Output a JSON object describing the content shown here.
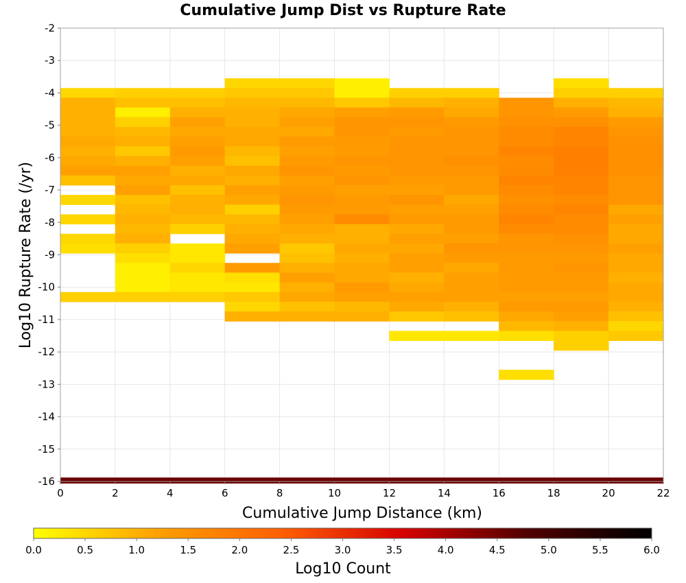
{
  "chart_data": {
    "type": "heatmap",
    "title": "Cumulative Jump Dist vs Rupture Rate",
    "xlabel": "Cumulative Jump Distance (km)",
    "ylabel": "Log10 Rupture Rate (/yr)",
    "xlim": [
      0,
      22
    ],
    "ylim": [
      -16,
      -2
    ],
    "x_ticks": [
      "0",
      "2",
      "4",
      "6",
      "8",
      "10",
      "12",
      "14",
      "16",
      "18",
      "20",
      "22"
    ],
    "y_ticks": [
      "-2",
      "-3",
      "-4",
      "-5",
      "-6",
      "-7",
      "-8",
      "-9",
      "-10",
      "-11",
      "-12",
      "-13",
      "-14",
      "-15",
      "-16"
    ],
    "x_bin_width": 2,
    "y_bin_height": 0.3,
    "grid": true,
    "colorbar": {
      "label": "Log10 Count",
      "range": [
        0,
        6
      ],
      "ticks": [
        "0.0",
        "0.5",
        "1.0",
        "1.5",
        "2.0",
        "2.5",
        "3.0",
        "3.5",
        "4.0",
        "4.5",
        "5.0",
        "5.5",
        "6.0"
      ],
      "colors": [
        "#ffff00",
        "#ffa000",
        "#ff6000",
        "#d40000",
        "#500000",
        "#000000"
      ]
    },
    "bins": [
      {
        "x": 0,
        "cells": [
          [
            -4.0,
            0.5
          ],
          [
            -4.3,
            1.0
          ],
          [
            -4.6,
            1.0
          ],
          [
            -4.9,
            1.0
          ],
          [
            -5.2,
            1.0
          ],
          [
            -5.5,
            1.1
          ],
          [
            -5.8,
            1.0
          ],
          [
            -6.1,
            1.1
          ],
          [
            -6.4,
            1.2
          ],
          [
            -6.7,
            0.8
          ],
          [
            -7.3,
            0.5
          ],
          [
            -7.9,
            0.5
          ],
          [
            -8.5,
            0.5
          ],
          [
            -8.8,
            0.4
          ],
          [
            -10.3,
            0.6
          ]
        ]
      },
      {
        "x": 2,
        "cells": [
          [
            -4.0,
            0.6
          ],
          [
            -4.3,
            0.8
          ],
          [
            -4.6,
            0.2
          ],
          [
            -4.9,
            0.6
          ],
          [
            -5.2,
            0.9
          ],
          [
            -5.5,
            1.0
          ],
          [
            -5.8,
            0.7
          ],
          [
            -6.1,
            1.0
          ],
          [
            -6.4,
            1.2
          ],
          [
            -6.7,
            1.1
          ],
          [
            -7.0,
            1.2
          ],
          [
            -7.3,
            0.8
          ],
          [
            -7.6,
            0.9
          ],
          [
            -7.9,
            1.0
          ],
          [
            -8.2,
            0.9
          ],
          [
            -8.5,
            1.0
          ],
          [
            -8.8,
            0.6
          ],
          [
            -9.1,
            0.4
          ],
          [
            -9.4,
            0.2
          ],
          [
            -9.7,
            0.2
          ],
          [
            -10.0,
            0.2
          ],
          [
            -10.3,
            0.6
          ]
        ]
      },
      {
        "x": 4,
        "cells": [
          [
            -4.0,
            0.6
          ],
          [
            -4.3,
            0.8
          ],
          [
            -4.6,
            1.0
          ],
          [
            -4.9,
            1.2
          ],
          [
            -5.2,
            1.1
          ],
          [
            -5.5,
            1.2
          ],
          [
            -5.8,
            1.3
          ],
          [
            -6.1,
            1.2
          ],
          [
            -6.4,
            1.0
          ],
          [
            -6.7,
            1.1
          ],
          [
            -7.0,
            0.8
          ],
          [
            -7.3,
            1.0
          ],
          [
            -7.6,
            1.0
          ],
          [
            -7.9,
            0.9
          ],
          [
            -8.2,
            0.6
          ],
          [
            -8.8,
            0.3
          ],
          [
            -9.1,
            0.3
          ],
          [
            -9.4,
            0.5
          ],
          [
            -9.7,
            0.3
          ],
          [
            -10.0,
            0.3
          ],
          [
            -10.3,
            0.6
          ]
        ]
      },
      {
        "x": 6,
        "cells": [
          [
            -3.7,
            0.5
          ],
          [
            -4.0,
            0.7
          ],
          [
            -4.3,
            0.9
          ],
          [
            -4.6,
            1.0
          ],
          [
            -4.9,
            1.0
          ],
          [
            -5.2,
            1.1
          ],
          [
            -5.5,
            1.1
          ],
          [
            -5.8,
            0.9
          ],
          [
            -6.1,
            0.8
          ],
          [
            -6.4,
            1.1
          ],
          [
            -6.7,
            1.0
          ],
          [
            -7.0,
            1.2
          ],
          [
            -7.3,
            1.1
          ],
          [
            -7.6,
            0.6
          ],
          [
            -7.9,
            0.9
          ],
          [
            -8.2,
            1.0
          ],
          [
            -8.5,
            1.1
          ],
          [
            -8.8,
            1.2
          ],
          [
            -9.4,
            1.3
          ],
          [
            -9.7,
            0.4
          ],
          [
            -10.0,
            0.3
          ],
          [
            -10.3,
            0.7
          ],
          [
            -10.6,
            0.5
          ],
          [
            -10.9,
            1.0
          ]
        ]
      },
      {
        "x": 8,
        "cells": [
          [
            -3.7,
            0.5
          ],
          [
            -4.0,
            0.7
          ],
          [
            -4.3,
            0.9
          ],
          [
            -4.6,
            1.1
          ],
          [
            -4.9,
            1.2
          ],
          [
            -5.2,
            1.1
          ],
          [
            -5.5,
            1.3
          ],
          [
            -5.8,
            1.2
          ],
          [
            -6.1,
            1.3
          ],
          [
            -6.4,
            1.4
          ],
          [
            -6.7,
            1.2
          ],
          [
            -7.0,
            1.3
          ],
          [
            -7.3,
            1.4
          ],
          [
            -7.6,
            1.3
          ],
          [
            -7.9,
            1.2
          ],
          [
            -8.2,
            1.1
          ],
          [
            -8.5,
            1.0
          ],
          [
            -8.8,
            0.7
          ],
          [
            -9.1,
            0.8
          ],
          [
            -9.4,
            1.0
          ],
          [
            -9.7,
            1.2
          ],
          [
            -10.0,
            1.0
          ],
          [
            -10.3,
            1.1
          ],
          [
            -10.6,
            0.8
          ],
          [
            -10.9,
            1.0
          ]
        ]
      },
      {
        "x": 10,
        "cells": [
          [
            -3.7,
            0.2
          ],
          [
            -4.0,
            0.2
          ],
          [
            -4.3,
            0.7
          ],
          [
            -4.6,
            1.2
          ],
          [
            -4.9,
            1.4
          ],
          [
            -5.2,
            1.4
          ],
          [
            -5.5,
            1.3
          ],
          [
            -5.8,
            1.3
          ],
          [
            -6.1,
            1.4
          ],
          [
            -6.4,
            1.3
          ],
          [
            -6.7,
            1.4
          ],
          [
            -7.0,
            1.2
          ],
          [
            -7.3,
            1.3
          ],
          [
            -7.6,
            1.3
          ],
          [
            -7.9,
            1.6
          ],
          [
            -8.2,
            1.0
          ],
          [
            -8.5,
            1.0
          ],
          [
            -8.8,
            1.1
          ],
          [
            -9.1,
            1.0
          ],
          [
            -9.4,
            1.1
          ],
          [
            -9.7,
            1.1
          ],
          [
            -10.0,
            1.3
          ],
          [
            -10.3,
            1.2
          ],
          [
            -10.6,
            0.9
          ],
          [
            -10.9,
            1.0
          ]
        ]
      },
      {
        "x": 12,
        "cells": [
          [
            -4.0,
            0.6
          ],
          [
            -4.3,
            0.9
          ],
          [
            -4.6,
            1.3
          ],
          [
            -4.9,
            1.4
          ],
          [
            -5.2,
            1.3
          ],
          [
            -5.5,
            1.4
          ],
          [
            -5.8,
            1.4
          ],
          [
            -6.1,
            1.4
          ],
          [
            -6.4,
            1.4
          ],
          [
            -6.7,
            1.3
          ],
          [
            -7.0,
            1.2
          ],
          [
            -7.3,
            1.4
          ],
          [
            -7.6,
            1.2
          ],
          [
            -7.9,
            1.3
          ],
          [
            -8.2,
            1.1
          ],
          [
            -8.5,
            1.2
          ],
          [
            -8.8,
            1.1
          ],
          [
            -9.1,
            1.2
          ],
          [
            -9.4,
            1.2
          ],
          [
            -9.7,
            1.0
          ],
          [
            -10.0,
            1.1
          ],
          [
            -10.3,
            1.2
          ],
          [
            -10.6,
            1.1
          ],
          [
            -10.9,
            0.7
          ],
          [
            -11.5,
            0.3
          ]
        ]
      },
      {
        "x": 14,
        "cells": [
          [
            -4.0,
            0.6
          ],
          [
            -4.3,
            1.0
          ],
          [
            -4.6,
            1.1
          ],
          [
            -4.9,
            1.3
          ],
          [
            -5.2,
            1.4
          ],
          [
            -5.5,
            1.4
          ],
          [
            -5.8,
            1.4
          ],
          [
            -6.1,
            1.5
          ],
          [
            -6.4,
            1.4
          ],
          [
            -6.7,
            1.3
          ],
          [
            -7.0,
            1.3
          ],
          [
            -7.3,
            1.1
          ],
          [
            -7.6,
            1.2
          ],
          [
            -7.9,
            1.3
          ],
          [
            -8.2,
            1.3
          ],
          [
            -8.5,
            1.2
          ],
          [
            -8.8,
            1.4
          ],
          [
            -9.1,
            1.3
          ],
          [
            -9.4,
            1.1
          ],
          [
            -9.7,
            1.2
          ],
          [
            -10.0,
            1.2
          ],
          [
            -10.3,
            1.2
          ],
          [
            -10.6,
            1.0
          ],
          [
            -10.9,
            0.8
          ],
          [
            -11.5,
            0.3
          ]
        ]
      },
      {
        "x": 16,
        "cells": [
          [
            -4.3,
            1.4
          ],
          [
            -4.6,
            1.4
          ],
          [
            -4.9,
            1.5
          ],
          [
            -5.2,
            1.6
          ],
          [
            -5.5,
            1.6
          ],
          [
            -5.8,
            1.7
          ],
          [
            -6.1,
            1.6
          ],
          [
            -6.4,
            1.6
          ],
          [
            -6.7,
            1.7
          ],
          [
            -7.0,
            1.6
          ],
          [
            -7.3,
            1.5
          ],
          [
            -7.6,
            1.6
          ],
          [
            -7.9,
            1.7
          ],
          [
            -8.2,
            1.6
          ],
          [
            -8.5,
            1.4
          ],
          [
            -8.8,
            1.4
          ],
          [
            -9.1,
            1.3
          ],
          [
            -9.4,
            1.3
          ],
          [
            -9.7,
            1.3
          ],
          [
            -10.0,
            1.3
          ],
          [
            -10.3,
            1.2
          ],
          [
            -10.6,
            1.3
          ],
          [
            -10.9,
            1.1
          ],
          [
            -11.2,
            0.9
          ],
          [
            -11.5,
            0.4
          ],
          [
            -12.7,
            0.4
          ]
        ]
      },
      {
        "x": 18,
        "cells": [
          [
            -3.7,
            0.4
          ],
          [
            -4.0,
            0.6
          ],
          [
            -4.3,
            1.0
          ],
          [
            -4.6,
            1.3
          ],
          [
            -4.9,
            1.5
          ],
          [
            -5.2,
            1.7
          ],
          [
            -5.5,
            1.7
          ],
          [
            -5.8,
            1.8
          ],
          [
            -6.1,
            1.8
          ],
          [
            -6.4,
            1.8
          ],
          [
            -6.7,
            1.7
          ],
          [
            -7.0,
            1.7
          ],
          [
            -7.3,
            1.6
          ],
          [
            -7.6,
            1.7
          ],
          [
            -7.9,
            1.6
          ],
          [
            -8.2,
            1.6
          ],
          [
            -8.5,
            1.5
          ],
          [
            -8.8,
            1.4
          ],
          [
            -9.1,
            1.3
          ],
          [
            -9.4,
            1.4
          ],
          [
            -9.7,
            1.3
          ],
          [
            -10.0,
            1.3
          ],
          [
            -10.3,
            1.2
          ],
          [
            -10.6,
            1.3
          ],
          [
            -10.9,
            1.2
          ],
          [
            -11.2,
            1.0
          ],
          [
            -11.5,
            0.6
          ],
          [
            -11.8,
            0.6
          ]
        ]
      },
      {
        "x": 20,
        "cells": [
          [
            -4.0,
            0.6
          ],
          [
            -4.3,
            0.9
          ],
          [
            -4.6,
            1.0
          ],
          [
            -4.9,
            1.3
          ],
          [
            -5.2,
            1.4
          ],
          [
            -5.5,
            1.5
          ],
          [
            -5.8,
            1.5
          ],
          [
            -6.1,
            1.5
          ],
          [
            -6.4,
            1.5
          ],
          [
            -6.7,
            1.4
          ],
          [
            -7.0,
            1.4
          ],
          [
            -7.3,
            1.4
          ],
          [
            -7.6,
            1.1
          ],
          [
            -7.9,
            1.2
          ],
          [
            -8.2,
            1.1
          ],
          [
            -8.5,
            1.1
          ],
          [
            -8.8,
            1.2
          ],
          [
            -9.1,
            1.1
          ],
          [
            -9.4,
            1.1
          ],
          [
            -9.7,
            1.0
          ],
          [
            -10.0,
            1.1
          ],
          [
            -10.3,
            1.1
          ],
          [
            -10.6,
            1.0
          ],
          [
            -10.9,
            0.8
          ],
          [
            -11.2,
            0.5
          ],
          [
            -11.5,
            0.7
          ]
        ]
      }
    ],
    "bottom_row": {
      "y": -16,
      "x_from": 0,
      "x_to": 22,
      "value": 5.0
    }
  }
}
